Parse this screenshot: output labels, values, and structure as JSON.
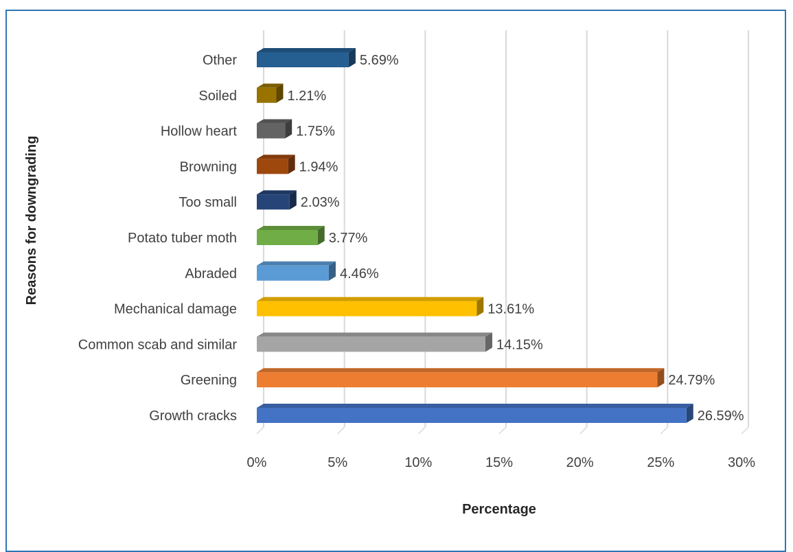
{
  "chart_data": {
    "type": "bar",
    "orientation": "horizontal",
    "style": "3d",
    "title": "",
    "xlabel": "Percentage",
    "ylabel": "Reasons for downgrading",
    "xlim": [
      0,
      30
    ],
    "x_ticks": [
      "0%",
      "5%",
      "10%",
      "15%",
      "20%",
      "25%",
      "30%"
    ],
    "grid": "vertical",
    "legend": "none",
    "categories": [
      "Growth cracks",
      "Greening",
      "Common scab and similar ",
      "Mechanical damage",
      "Abraded",
      "Potato tuber moth",
      "Too small",
      "Browning",
      "Hollow heart",
      "Soiled",
      "Other"
    ],
    "values": [
      26.59,
      24.79,
      14.15,
      13.61,
      4.46,
      3.77,
      2.03,
      1.94,
      1.75,
      1.21,
      5.69
    ],
    "data_labels": [
      "26.59%",
      "24.79%",
      "14.15%",
      "13.61%",
      "4.46%",
      "3.77%",
      "2.03%",
      "1.94%",
      "1.75%",
      "1.21%",
      "5.69%"
    ],
    "colors": [
      "#4472c4",
      "#ed7d31",
      "#a5a5a5",
      "#ffc000",
      "#5b9bd5",
      "#70ad47",
      "#264478",
      "#9e480e",
      "#636363",
      "#997300",
      "#255e91"
    ]
  }
}
